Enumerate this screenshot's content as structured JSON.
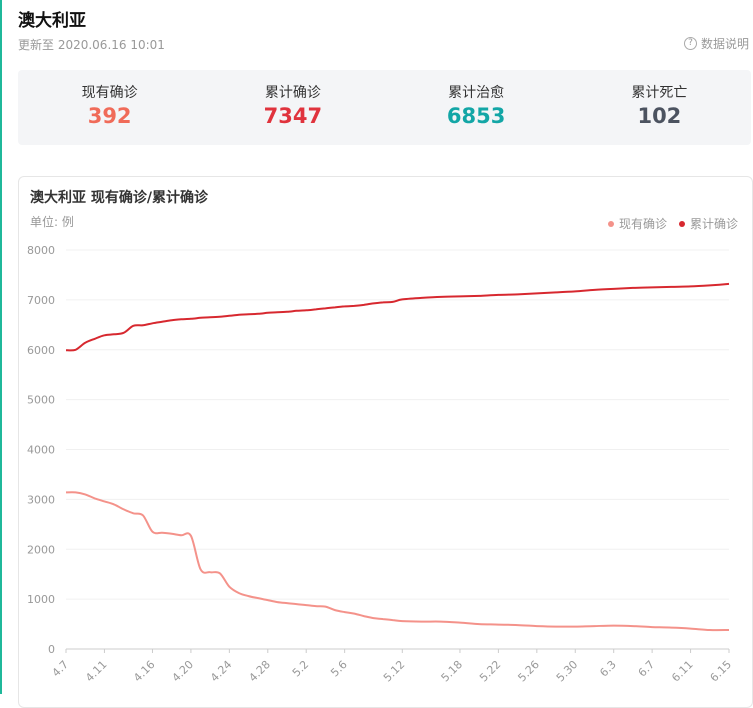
{
  "header": {
    "title": "澳大利亚",
    "updated": "更新至 2020.06.16 10:01",
    "explain_label": "数据说明",
    "help_icon": "?"
  },
  "stats": [
    {
      "label": "现有确诊",
      "value": "392",
      "color": "#f06b59"
    },
    {
      "label": "累计确诊",
      "value": "7347",
      "color": "#e0333d"
    },
    {
      "label": "累计治愈",
      "value": "6853",
      "color": "#13a6a6"
    },
    {
      "label": "累计死亡",
      "value": "102",
      "color": "#4c5360"
    }
  ],
  "chart_data": {
    "type": "line",
    "title": "澳大利亚 现有确诊/累计确诊",
    "unit_label": "单位: 例",
    "legend_position": "top-right",
    "grid": true,
    "ylim": [
      0,
      8000
    ],
    "y_ticks": [
      0,
      1000,
      2000,
      3000,
      4000,
      5000,
      6000,
      7000,
      8000
    ],
    "x_ticks": [
      "4.7",
      "4.11",
      "4.16",
      "4.20",
      "4.24",
      "4.28",
      "5.2",
      "5.6",
      "5.12",
      "5.18",
      "5.22",
      "5.26",
      "5.30",
      "6.3",
      "6.7",
      "6.11",
      "6.15"
    ],
    "series": [
      {
        "name": "现有确诊",
        "color": "#f4928a",
        "values": [
          [
            "4.7",
            3140
          ],
          [
            "4.8",
            3140
          ],
          [
            "4.9",
            3100
          ],
          [
            "4.10",
            3020
          ],
          [
            "4.11",
            2960
          ],
          [
            "4.12",
            2900
          ],
          [
            "4.13",
            2800
          ],
          [
            "4.14",
            2720
          ],
          [
            "4.15",
            2680
          ],
          [
            "4.16",
            2350
          ],
          [
            "4.17",
            2330
          ],
          [
            "4.18",
            2310
          ],
          [
            "4.19",
            2280
          ],
          [
            "4.20",
            2270
          ],
          [
            "4.21",
            1600
          ],
          [
            "4.22",
            1540
          ],
          [
            "4.23",
            1520
          ],
          [
            "4.24",
            1250
          ],
          [
            "4.25",
            1120
          ],
          [
            "4.26",
            1060
          ],
          [
            "4.27",
            1020
          ],
          [
            "4.28",
            980
          ],
          [
            "4.29",
            940
          ],
          [
            "4.30",
            920
          ],
          [
            "5.1",
            900
          ],
          [
            "5.2",
            880
          ],
          [
            "5.3",
            860
          ],
          [
            "5.4",
            850
          ],
          [
            "5.5",
            780
          ],
          [
            "5.6",
            740
          ],
          [
            "5.7",
            710
          ],
          [
            "5.8",
            660
          ],
          [
            "5.9",
            620
          ],
          [
            "5.10",
            600
          ],
          [
            "5.11",
            580
          ],
          [
            "5.12",
            560
          ],
          [
            "5.14",
            550
          ],
          [
            "5.16",
            550
          ],
          [
            "5.18",
            530
          ],
          [
            "5.20",
            500
          ],
          [
            "5.22",
            490
          ],
          [
            "5.24",
            480
          ],
          [
            "5.26",
            460
          ],
          [
            "5.28",
            450
          ],
          [
            "5.30",
            450
          ],
          [
            "6.1",
            460
          ],
          [
            "6.3",
            470
          ],
          [
            "6.5",
            460
          ],
          [
            "6.7",
            440
          ],
          [
            "6.9",
            430
          ],
          [
            "6.11",
            410
          ],
          [
            "6.13",
            380
          ],
          [
            "6.15",
            380
          ]
        ]
      },
      {
        "name": "累计确诊",
        "color": "#d7282f",
        "values": [
          [
            "4.7",
            5990
          ],
          [
            "4.8",
            6000
          ],
          [
            "4.9",
            6140
          ],
          [
            "4.10",
            6220
          ],
          [
            "4.11",
            6290
          ],
          [
            "4.12",
            6310
          ],
          [
            "4.13",
            6340
          ],
          [
            "4.14",
            6480
          ],
          [
            "4.15",
            6490
          ],
          [
            "4.16",
            6530
          ],
          [
            "4.17",
            6560
          ],
          [
            "4.18",
            6590
          ],
          [
            "4.19",
            6610
          ],
          [
            "4.20",
            6620
          ],
          [
            "4.21",
            6640
          ],
          [
            "4.22",
            6650
          ],
          [
            "4.23",
            6660
          ],
          [
            "4.24",
            6680
          ],
          [
            "4.25",
            6700
          ],
          [
            "4.26",
            6710
          ],
          [
            "4.27",
            6720
          ],
          [
            "4.28",
            6740
          ],
          [
            "4.29",
            6750
          ],
          [
            "4.30",
            6760
          ],
          [
            "5.1",
            6780
          ],
          [
            "5.2",
            6790
          ],
          [
            "5.3",
            6810
          ],
          [
            "5.4",
            6830
          ],
          [
            "5.5",
            6850
          ],
          [
            "5.6",
            6870
          ],
          [
            "5.7",
            6880
          ],
          [
            "5.8",
            6900
          ],
          [
            "5.9",
            6930
          ],
          [
            "5.10",
            6950
          ],
          [
            "5.11",
            6960
          ],
          [
            "5.12",
            7010
          ],
          [
            "5.14",
            7040
          ],
          [
            "5.16",
            7060
          ],
          [
            "5.18",
            7070
          ],
          [
            "5.20",
            7080
          ],
          [
            "5.22",
            7100
          ],
          [
            "5.24",
            7110
          ],
          [
            "5.26",
            7130
          ],
          [
            "5.28",
            7150
          ],
          [
            "5.30",
            7170
          ],
          [
            "6.1",
            7200
          ],
          [
            "6.3",
            7220
          ],
          [
            "6.5",
            7240
          ],
          [
            "6.7",
            7250
          ],
          [
            "6.9",
            7260
          ],
          [
            "6.11",
            7270
          ],
          [
            "6.13",
            7290
          ],
          [
            "6.15",
            7320
          ]
        ]
      }
    ]
  }
}
